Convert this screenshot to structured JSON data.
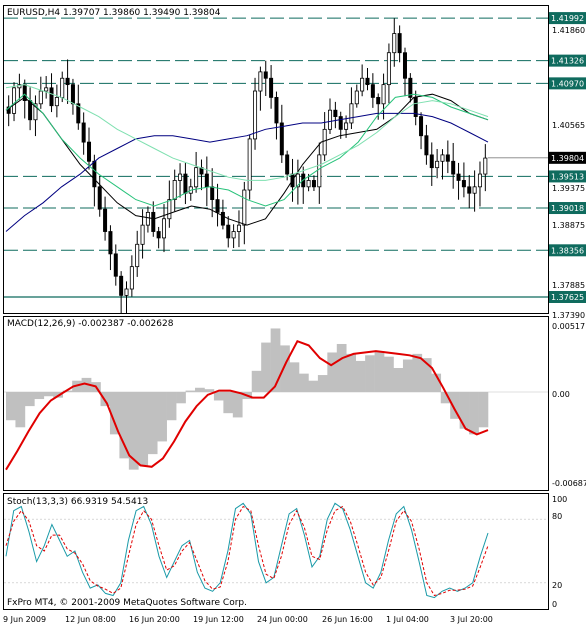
{
  "colors": {
    "background": "#ffffff",
    "frame": "#000000",
    "candle": "#000000",
    "level_line": "#0f6b5e",
    "level_tag": "#0f6b5e",
    "ma_black": "#000000",
    "ma_navy": "#000080",
    "ma_green": "#27c27a",
    "ma_lightgreen": "#7fe0b0",
    "macd_hist": "#c0c0c0",
    "macd_signal": "#e00000",
    "stoch_main": "#1a9aa8",
    "stoch_signal": "#e00000"
  },
  "chart_data": [
    {
      "type": "candlestick",
      "title": "EURUSD,H4  1.39707 1.39860 1.39490 1.39804",
      "ylim": [
        1.3739,
        1.4215
      ],
      "y_ticks": [
        "1.41860",
        "1.40565",
        "1.39375",
        "1.38875",
        "1.37885",
        "1.37390"
      ],
      "levels": [
        {
          "label": "1.41992",
          "value": 1.41992,
          "style": "dashed"
        },
        {
          "label": "1.41326",
          "value": 1.41326,
          "style": "dashed"
        },
        {
          "label": "1.40970",
          "value": 1.4097,
          "style": "dashed"
        },
        {
          "label": "1.39513",
          "value": 1.39513,
          "style": "dashed"
        },
        {
          "label": "1.39018",
          "value": 1.39018,
          "style": "dashed"
        },
        {
          "label": "1.38356",
          "value": 1.38356,
          "style": "dashed"
        },
        {
          "label": "1.37625",
          "value": 1.37625,
          "style": "solid"
        }
      ],
      "current_price": {
        "label": "1.39804",
        "value": 1.39804
      },
      "close_series": [
        1.405,
        1.409,
        1.4095,
        1.407,
        1.404,
        1.4065,
        1.4085,
        1.409,
        1.4062,
        1.4075,
        1.4105,
        1.4095,
        1.4065,
        1.4035,
        1.4005,
        1.3975,
        1.3935,
        1.39,
        1.3865,
        1.383,
        1.3795,
        1.3765,
        1.3775,
        1.381,
        1.3845,
        1.3875,
        1.3895,
        1.3865,
        1.3855,
        1.3885,
        1.3915,
        1.3945,
        1.3955,
        1.3925,
        1.3935,
        1.3965,
        1.3955,
        1.3935,
        1.3915,
        1.3895,
        1.3875,
        1.3855,
        1.3865,
        1.3875,
        1.393,
        1.401,
        1.4085,
        1.4115,
        1.4105,
        1.4075,
        1.4035,
        1.3985,
        1.3955,
        1.3935,
        1.3955,
        1.3935,
        1.3945,
        1.3935,
        1.3985,
        1.4025,
        1.4055,
        1.4045,
        1.4025,
        1.4035,
        1.4065,
        1.4085,
        1.4105,
        1.4095,
        1.4075,
        1.4065,
        1.4095,
        1.4145,
        1.4175,
        1.4145,
        1.4105,
        1.4075,
        1.4045,
        1.4015,
        1.3985,
        1.3965,
        1.3975,
        1.3985,
        1.3975,
        1.3955,
        1.3945,
        1.3935,
        1.3925,
        1.3935,
        1.3955,
        1.398
      ],
      "moving_averages": [
        {
          "color": "black",
          "values": [
            1.4055,
            1.4075,
            1.405,
            1.401,
            1.397,
            1.394,
            1.391,
            1.389,
            1.3885,
            1.3895,
            1.3905,
            1.39,
            1.3885,
            1.3875,
            1.3885,
            1.3925,
            1.397,
            1.4005,
            1.4015,
            1.402,
            1.4025,
            1.4045,
            1.4075,
            1.408,
            1.407,
            1.405,
            1.404
          ]
        },
        {
          "color": "navy",
          "values": [
            1.3865,
            1.389,
            1.391,
            1.3935,
            1.3955,
            1.398,
            1.3995,
            1.401,
            1.4015,
            1.4015,
            1.401,
            1.4005,
            1.401,
            1.4015,
            1.4025,
            1.403,
            1.4035,
            1.4035,
            1.404,
            1.4045,
            1.405,
            1.405,
            1.405,
            1.4045,
            1.4035,
            1.402,
            1.4005
          ]
        },
        {
          "color": "green",
          "values": [
            1.4055,
            1.408,
            1.405,
            1.401,
            1.398,
            1.3955,
            1.3935,
            1.3915,
            1.3905,
            1.3915,
            1.393,
            1.3935,
            1.393,
            1.3915,
            1.3905,
            1.3915,
            1.3945,
            1.3965,
            1.398,
            1.4005,
            1.4045,
            1.4075,
            1.408,
            1.4075,
            1.406,
            1.405,
            1.404
          ]
        },
        {
          "color": "lightgreen",
          "values": [
            1.409,
            1.4095,
            1.4085,
            1.4075,
            1.406,
            1.4045,
            1.4025,
            1.401,
            1.3995,
            1.398,
            1.397,
            1.396,
            1.395,
            1.3945,
            1.3945,
            1.395,
            1.396,
            1.397,
            1.3985,
            1.4,
            1.402,
            1.4045,
            1.4065,
            1.407,
            1.4065,
            1.4055,
            1.4045
          ]
        }
      ]
    },
    {
      "type": "bar",
      "title": "MACD(12,26,9) -0.002387 -0.002628",
      "ylim": [
        -0.00687,
        0.00517
      ],
      "y_ticks": [
        "0.00517",
        "0.00",
        "-0.00687"
      ],
      "histogram": [
        -0.002,
        -0.0025,
        -0.001,
        -0.0005,
        -0.0003,
        -0.0004,
        0.0001,
        0.0008,
        0.001,
        0.0007,
        -0.001,
        -0.003,
        -0.0047,
        -0.0055,
        -0.0052,
        -0.0044,
        -0.0035,
        -0.002,
        -0.0008,
        0.0001,
        0.0003,
        0.0002,
        -0.0006,
        -0.0015,
        -0.0018,
        -0.0005,
        0.0015,
        0.0035,
        0.0045,
        0.0033,
        0.0021,
        0.0013,
        0.0008,
        0.0012,
        0.0028,
        0.0034,
        0.0027,
        0.0022,
        0.0026,
        0.0029,
        0.0025,
        0.0017,
        0.0023,
        0.0027,
        0.0024,
        0.0013,
        -0.0008,
        -0.0019,
        -0.0026,
        -0.003,
        -0.0025
      ],
      "signal": [
        -0.0055,
        -0.0042,
        -0.0028,
        -0.0015,
        -0.0006,
        -0.0001,
        0.0004,
        0.0006,
        0.0004,
        -0.0008,
        -0.0028,
        -0.0045,
        -0.0052,
        -0.0053,
        -0.0047,
        -0.0035,
        -0.0021,
        -0.001,
        -0.0002,
        0.0001,
        0.0001,
        -0.0001,
        -0.0004,
        -0.0004,
        0.0004,
        0.0021,
        0.0036,
        0.0033,
        0.0024,
        0.0019,
        0.0024,
        0.0027,
        0.0028,
        0.0029,
        0.0028,
        0.0027,
        0.0026,
        0.0024,
        0.0017,
        0.0003,
        -0.0012,
        -0.0026,
        -0.003,
        -0.0027
      ]
    },
    {
      "type": "line",
      "title": "Stoch(13,3,3) 66.9319 54.5413",
      "ylim": [
        0,
        100
      ],
      "y_ticks": [
        "100",
        "80",
        "20",
        "0"
      ],
      "series": [
        {
          "values": [
            45,
            88,
            92,
            68,
            40,
            55,
            75,
            60,
            45,
            50,
            30,
            15,
            18,
            10,
            8,
            20,
            60,
            88,
            92,
            75,
            45,
            25,
            40,
            55,
            60,
            30,
            15,
            12,
            20,
            50,
            90,
            95,
            85,
            40,
            20,
            25,
            55,
            85,
            90,
            65,
            35,
            45,
            80,
            95,
            90,
            70,
            45,
            20,
            15,
            30,
            60,
            85,
            92,
            70,
            40,
            8,
            6,
            12,
            15,
            12,
            15,
            20,
            45,
            67
          ]
        },
        {
          "values": [
            55,
            78,
            88,
            78,
            55,
            50,
            65,
            65,
            52,
            48,
            38,
            22,
            17,
            14,
            10,
            15,
            45,
            75,
            88,
            80,
            55,
            32,
            36,
            50,
            58,
            40,
            22,
            14,
            16,
            40,
            80,
            92,
            88,
            55,
            28,
            24,
            45,
            75,
            88,
            72,
            45,
            42,
            70,
            88,
            92,
            78,
            55,
            30,
            18,
            25,
            50,
            78,
            88,
            78,
            52,
            20,
            8,
            10,
            13,
            13,
            14,
            17,
            35,
            55
          ]
        }
      ]
    }
  ],
  "x_labels": [
    "9 Jun 2009",
    "12 Jun 08:00",
    "16 Jun 20:00",
    "19 Jun 12:00",
    "24 Jun 00:00",
    "26 Jun 16:00",
    "1 Jul 04:00",
    "3 Jul 20:00"
  ],
  "watermark": "FxPro MT4, © 2001-2009 MetaQuotes Software Corp."
}
